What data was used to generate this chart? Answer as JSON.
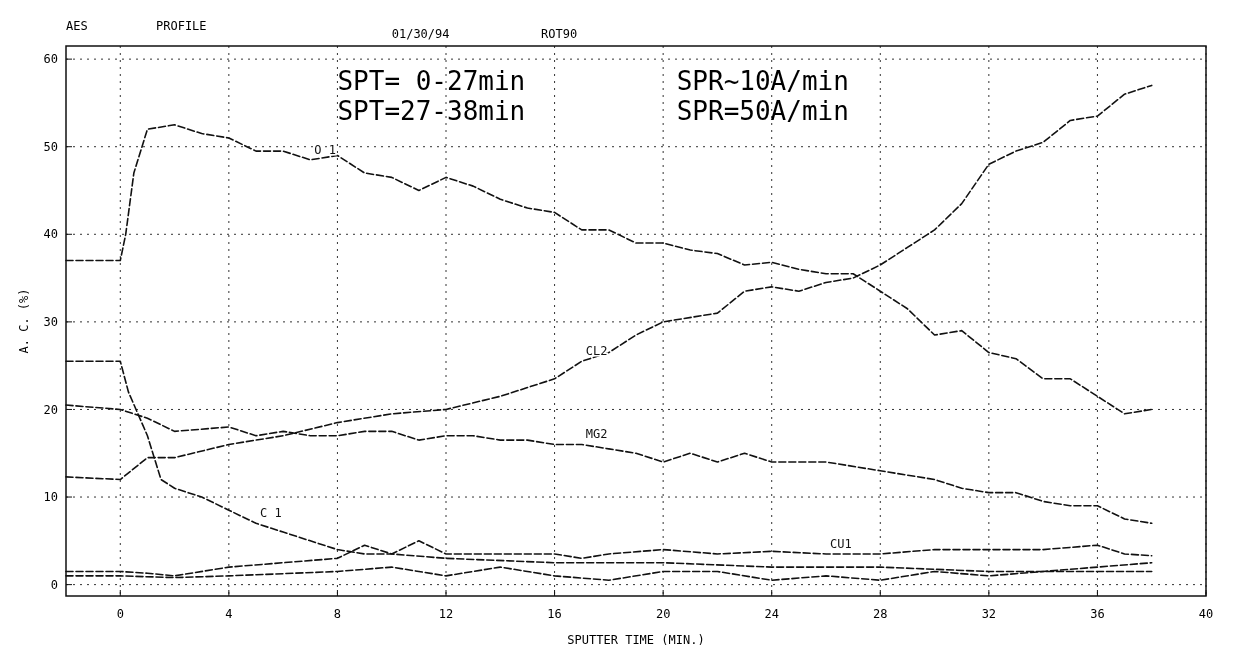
{
  "chart_data": {
    "type": "line",
    "title": "AES",
    "subtitle": "PROFILE",
    "xlabel": "SPUTTER TIME (MIN.)",
    "ylabel": "A. C. (%)",
    "annotations": [
      "01/30/94",
      "ROT90",
      "SPT= 0-27min",
      "SPR~10A/min",
      "SPT=27-38min",
      "SPR=50A/min"
    ],
    "xlim": [
      -2,
      40
    ],
    "xticks": [
      0,
      4,
      8,
      12,
      16,
      20,
      24,
      28,
      32,
      36,
      40
    ],
    "ylim": [
      -1.3,
      61.5
    ],
    "yticks": [
      0,
      10,
      20,
      30,
      40,
      50,
      60
    ],
    "grid": true,
    "line_style": "dashed",
    "marker": "none",
    "series": [
      {
        "name": "O 1",
        "color": "#111111",
        "x": [
          -2,
          0,
          0.2,
          0.5,
          1,
          2,
          3,
          4,
          5,
          6,
          7,
          8,
          9,
          10,
          11,
          12,
          13,
          14,
          15,
          16,
          17,
          18,
          19,
          20,
          21,
          22,
          23,
          24,
          25,
          26,
          27,
          28,
          29,
          30,
          31,
          32,
          33,
          34,
          35,
          36,
          37,
          38
        ],
        "values": [
          37,
          37,
          40,
          47,
          52,
          52.5,
          51.5,
          51,
          49.5,
          49.5,
          48.5,
          49,
          47,
          46.5,
          45,
          46.5,
          45.5,
          44,
          43,
          42.5,
          40.5,
          40.5,
          39,
          39,
          38.2,
          37.8,
          36.5,
          36.8,
          36,
          35.5,
          35.5,
          33.5,
          31.5,
          28.5,
          29,
          26.5,
          25.8,
          23.5,
          23.5,
          21.5,
          19.5,
          20
        ]
      },
      {
        "name": "CL2",
        "color": "#111111",
        "x": [
          -2,
          0,
          1,
          2,
          4,
          6,
          8,
          10,
          12,
          14,
          15,
          16,
          17,
          18,
          19,
          20,
          22,
          23,
          24,
          25,
          26,
          27,
          28,
          29,
          30,
          31,
          32,
          33,
          34,
          35,
          36,
          37,
          38
        ],
        "values": [
          12.3,
          12,
          14.5,
          14.5,
          16,
          17,
          18.5,
          19.5,
          20,
          21.5,
          22.5,
          23.5,
          25.5,
          26.5,
          28.5,
          30,
          31,
          33.5,
          34,
          33.5,
          34.5,
          35,
          36.5,
          38.5,
          40.5,
          43.5,
          48,
          49.5,
          50.5,
          53,
          53.5,
          56,
          57
        ]
      },
      {
        "name": "MG2",
        "color": "#111111",
        "x": [
          -2,
          0,
          1,
          2,
          4,
          5,
          6,
          7,
          8,
          9,
          10,
          11,
          12,
          13,
          14,
          15,
          16,
          17,
          18,
          19,
          20,
          21,
          22,
          23,
          24,
          26,
          28,
          30,
          31,
          32,
          33,
          34,
          35,
          36,
          37,
          38
        ],
        "values": [
          20.5,
          20,
          19,
          17.5,
          18,
          17,
          17.5,
          17,
          17,
          17.5,
          17.5,
          16.5,
          17,
          17,
          16.5,
          16.5,
          16,
          16,
          15.5,
          15,
          14,
          15,
          14,
          15,
          14,
          14,
          13,
          12,
          11,
          10.5,
          10.5,
          9.5,
          9,
          9,
          7.5,
          7
        ]
      },
      {
        "name": "C 1",
        "color": "#111111",
        "x": [
          -2,
          0,
          0.3,
          1,
          1.5,
          2,
          3,
          4,
          5,
          6,
          7,
          8,
          9,
          10,
          12,
          16,
          20,
          24,
          28,
          32,
          36,
          38
        ],
        "values": [
          25.5,
          25.5,
          22,
          17,
          12,
          11,
          10,
          8.5,
          7,
          6,
          5,
          4,
          3.5,
          3.5,
          3,
          2.5,
          2.5,
          2,
          2,
          1.5,
          1.5,
          1.5
        ]
      },
      {
        "name": "CU1",
        "color": "#111111",
        "x": [
          -2,
          0,
          1,
          2,
          4,
          6,
          8,
          9,
          10,
          11,
          12,
          14,
          16,
          17,
          18,
          20,
          22,
          24,
          26,
          28,
          30,
          32,
          34,
          36,
          37,
          38
        ],
        "values": [
          1.5,
          1.5,
          1.3,
          1,
          2,
          2.5,
          3,
          4.5,
          3.5,
          5,
          3.5,
          3.5,
          3.5,
          3,
          3.5,
          4,
          3.5,
          3.8,
          3.5,
          3.5,
          4,
          4,
          4,
          4.5,
          3.5,
          3.3
        ]
      },
      {
        "color": "#111111",
        "x": [
          -2,
          0,
          2,
          4,
          8,
          10,
          12,
          14,
          16,
          18,
          20,
          22,
          24,
          26,
          28,
          30,
          32,
          34,
          36,
          38
        ],
        "values": [
          1,
          1,
          0.8,
          1,
          1.5,
          2,
          1,
          2,
          1,
          0.5,
          1.5,
          1.5,
          0.5,
          1,
          0.5,
          1.5,
          1,
          1.5,
          2,
          2.5
        ]
      }
    ]
  }
}
